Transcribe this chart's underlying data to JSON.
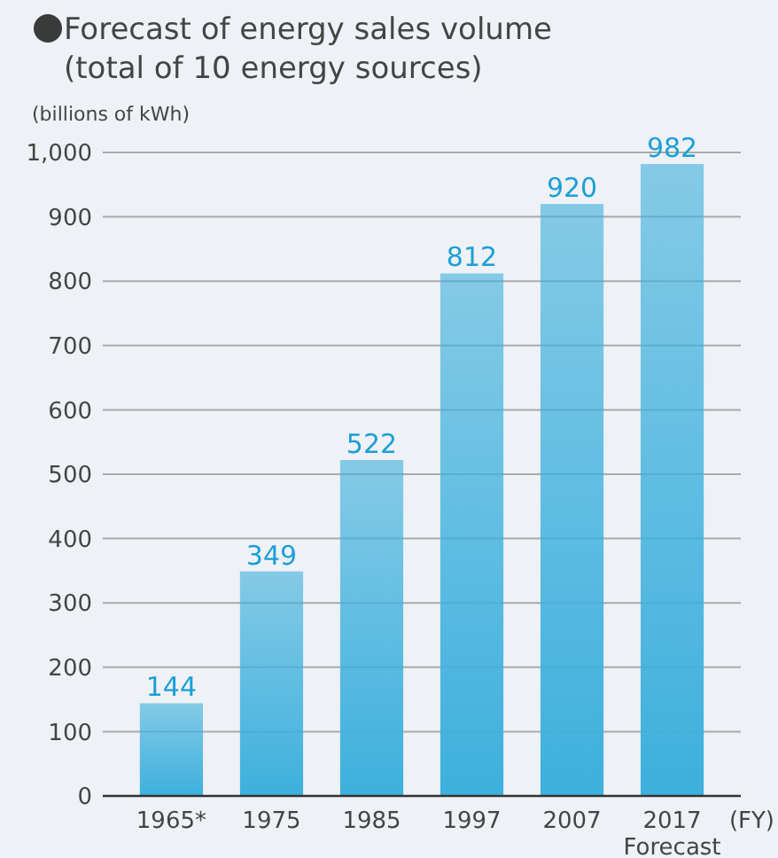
{
  "chart_data": {
    "type": "bar",
    "title": "Forecast of energy sales volume\n(total of 10 energy sources)",
    "ylabel": "(billions of kWh)",
    "xlabel": "(FY)",
    "categories": [
      "1965*",
      "1975",
      "1985",
      "1997",
      "2007",
      "2017\nForecast"
    ],
    "values": [
      144,
      349,
      522,
      812,
      920,
      982
    ],
    "color": "#3db0dd",
    "ylim": [
      0,
      1000
    ],
    "yticks": [
      0,
      100,
      200,
      300,
      400,
      500,
      600,
      700,
      800,
      900,
      {
        "value": 1000,
        "label": "1,000"
      }
    ],
    "grid": "y",
    "data_labels": true
  }
}
